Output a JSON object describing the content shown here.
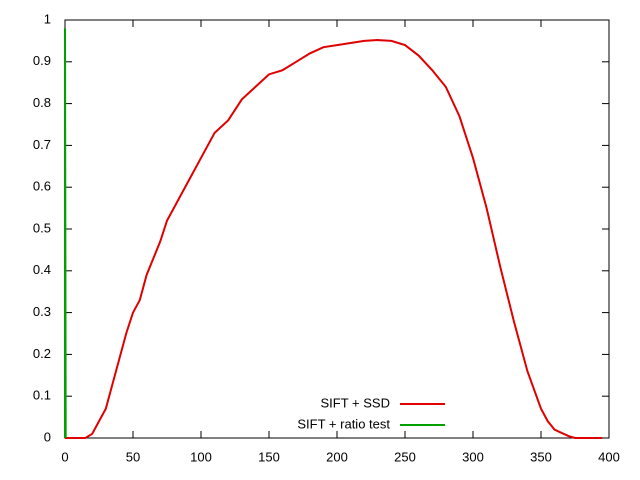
{
  "chart_data": {
    "type": "line",
    "series": [
      {
        "name": "SIFT + SSD",
        "color": "#e00000",
        "x": [
          0,
          15,
          20,
          25,
          30,
          35,
          40,
          45,
          50,
          55,
          60,
          65,
          70,
          75,
          80,
          90,
          100,
          110,
          120,
          130,
          140,
          150,
          160,
          170,
          180,
          190,
          200,
          210,
          220,
          230,
          240,
          250,
          260,
          270,
          280,
          290,
          300,
          310,
          320,
          330,
          340,
          350,
          355,
          360,
          370,
          375,
          395
        ],
        "values": [
          0,
          0,
          0.01,
          0.04,
          0.07,
          0.13,
          0.19,
          0.25,
          0.3,
          0.33,
          0.39,
          0.43,
          0.47,
          0.52,
          0.55,
          0.61,
          0.67,
          0.73,
          0.76,
          0.81,
          0.84,
          0.87,
          0.88,
          0.9,
          0.92,
          0.935,
          0.94,
          0.945,
          0.95,
          0.952,
          0.95,
          0.94,
          0.915,
          0.88,
          0.84,
          0.77,
          0.67,
          0.55,
          0.41,
          0.28,
          0.16,
          0.07,
          0.04,
          0.02,
          0.005,
          0,
          0
        ]
      },
      {
        "name": "SIFT + ratio test",
        "color": "#00a000",
        "x": [
          0,
          0,
          0,
          0.5
        ],
        "values": [
          0,
          0.72,
          0.98,
          0
        ]
      }
    ],
    "xlim": [
      0,
      400
    ],
    "xticks": [
      0,
      50,
      100,
      150,
      200,
      250,
      300,
      350,
      400
    ],
    "ylim": [
      0,
      1
    ],
    "yticks": [
      0,
      0.1,
      0.2,
      0.3,
      0.4,
      0.5,
      0.6,
      0.7,
      0.8,
      0.9,
      1
    ],
    "legend": "bottom"
  }
}
